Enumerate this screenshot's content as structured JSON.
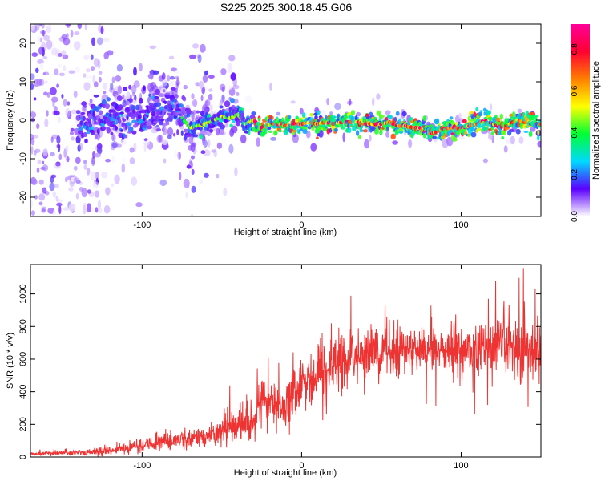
{
  "title": "S225.2025.300.18.45.G06",
  "colorbar": {
    "label": "Normalized spectral amplitude",
    "ticks": [
      0.0,
      0.2,
      0.4,
      0.6,
      0.8
    ],
    "tick_labels": [
      "0.0",
      "0.2",
      "0.4",
      "0.6",
      "0.8"
    ],
    "colors": [
      "#ffffff",
      "#5b00ff",
      "#00d9ff",
      "#00ff33",
      "#ffff00",
      "#ff7f00",
      "#ff0033",
      "#ff0099"
    ]
  },
  "chart_data": [
    {
      "type": "heatmap",
      "title": "S225.2025.300.18.45.G06",
      "xlabel": "Height of straight line (km)",
      "ylabel": "Frequency (Hz)",
      "xlim": [
        -170,
        150
      ],
      "ylim": [
        -25,
        25
      ],
      "x_ticks": [
        -100,
        0,
        100
      ],
      "x_tick_labels": [
        "-100",
        "0",
        "100"
      ],
      "y_ticks": [
        -20,
        -10,
        0,
        10,
        20
      ],
      "y_tick_labels": [
        "-20",
        "-10",
        "0",
        "10",
        "20"
      ],
      "ridge_x": [
        -135,
        -120,
        -100,
        -80,
        -70,
        -60,
        -50,
        -45,
        -40,
        -35,
        -30,
        -25,
        -20,
        -15,
        -10,
        -5,
        0,
        5,
        10,
        15,
        20,
        25,
        30,
        35,
        40,
        45,
        50,
        55,
        60,
        65,
        70,
        75,
        80,
        85,
        90,
        95,
        100,
        105,
        110,
        115,
        120,
        125,
        130,
        135,
        140,
        145,
        150
      ],
      "ridge_freq": [
        0,
        0,
        1.5,
        3,
        -2,
        -1,
        1,
        0.5,
        1.5,
        -1,
        0,
        -2,
        -1,
        -1,
        -1.5,
        -1,
        -1,
        -0.5,
        -1,
        -0.5,
        -1,
        -0.5,
        -0.5,
        -0.5,
        -1,
        -1,
        -1,
        -0.5,
        -1.5,
        -1.5,
        -2,
        -2,
        -3.5,
        -3,
        -2,
        -2,
        -2,
        -1.5,
        -1,
        0,
        -1,
        -2,
        -1,
        0,
        -0.5,
        -1,
        -1
      ]
    },
    {
      "type": "line",
      "xlabel": "Height of straight line (km)",
      "ylabel": "SNR (10 * v/v)",
      "xlim": [
        -170,
        150
      ],
      "ylim": [
        0,
        1180
      ],
      "x_ticks": [
        -100,
        0,
        100
      ],
      "x_tick_labels": [
        "-100",
        "0",
        "100"
      ],
      "y_ticks": [
        0,
        200,
        400,
        600,
        800,
        1000
      ],
      "y_tick_labels": [
        "0",
        "200",
        "400",
        "600",
        "800",
        "1000"
      ],
      "series": [
        {
          "color": "#ee3333",
          "x": [
            -170,
            -150,
            -135,
            -120,
            -100,
            -85,
            -70,
            -60,
            -50,
            -40,
            -35,
            -30,
            -25,
            -20,
            -15,
            -10,
            -5,
            0,
            10,
            20,
            30,
            40,
            50,
            60,
            70,
            80,
            90,
            100,
            110,
            120,
            130,
            140,
            150
          ],
          "y": [
            20,
            25,
            28,
            40,
            70,
            100,
            110,
            130,
            160,
            190,
            200,
            230,
            350,
            330,
            280,
            300,
            370,
            420,
            480,
            550,
            600,
            640,
            650,
            660,
            660,
            670,
            650,
            650,
            660,
            660,
            670,
            650,
            660
          ],
          "noise": [
            10,
            12,
            15,
            25,
            35,
            50,
            55,
            65,
            80,
            95,
            100,
            110,
            130,
            130,
            120,
            140,
            150,
            150,
            160,
            160,
            150,
            140,
            140,
            130,
            130,
            140,
            130,
            140,
            140,
            150,
            170,
            180,
            180
          ]
        }
      ]
    }
  ]
}
